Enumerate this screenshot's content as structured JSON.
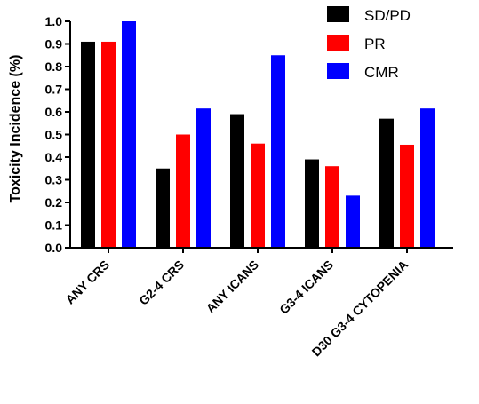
{
  "chart_data": {
    "type": "bar",
    "ylabel": "Toxicity Incidence  (%)",
    "xlabel": "",
    "ylim": [
      0,
      1.0
    ],
    "yticks": [
      "0.0",
      "0.1",
      "0.2",
      "0.3",
      "0.4",
      "0.5",
      "0.6",
      "0.7",
      "0.8",
      "0.9",
      "1.0"
    ],
    "categories": [
      "ANY CRS",
      "G2-4 CRS",
      "ANY ICANS",
      "G3-4 ICANS",
      "D30 G3-4 CYTOPENIA"
    ],
    "series": [
      {
        "name": "SD/PD",
        "color": "#000000",
        "values": [
          0.91,
          0.35,
          0.59,
          0.39,
          0.57
        ]
      },
      {
        "name": "PR",
        "color": "#ff0000",
        "values": [
          0.91,
          0.5,
          0.46,
          0.36,
          0.455
        ]
      },
      {
        "name": "CMR",
        "color": "#0000ff",
        "values": [
          1.0,
          0.615,
          0.85,
          0.23,
          0.615
        ]
      }
    ],
    "legend_position": "top-right",
    "grid": false
  }
}
